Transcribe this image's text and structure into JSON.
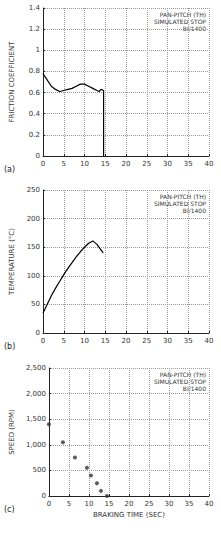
{
  "chart_data": [
    {
      "type": "line",
      "panel_label": "(a)",
      "annotations": [
        "PAN-PITCH (TH)",
        "SIMULATED STOP",
        "BI/1400"
      ],
      "ylabel": "FRICTION COEFFICIENT",
      "x": [
        0,
        0.5,
        1,
        2,
        3,
        4,
        5,
        6,
        7,
        8,
        9,
        10,
        11,
        12,
        13,
        13.5,
        14,
        14.6,
        14.6
      ],
      "values": [
        0.78,
        0.75,
        0.72,
        0.66,
        0.63,
        0.61,
        0.62,
        0.63,
        0.64,
        0.66,
        0.68,
        0.68,
        0.66,
        0.64,
        0.62,
        0.61,
        0.63,
        0.62,
        0
      ],
      "xlim": [
        0,
        40
      ],
      "xticks": [
        0,
        5,
        10,
        15,
        20,
        25,
        30,
        35,
        40
      ],
      "ylim": [
        0,
        1.4
      ],
      "yticks": [
        0,
        0.2,
        0.4,
        0.6,
        0.8,
        1,
        1.2,
        1.4
      ],
      "color": "#000000",
      "grid": true
    },
    {
      "type": "line",
      "panel_label": "(b)",
      "annotations": [
        "PAN-PITCH (TH)",
        "SIMULATED STOP",
        "BI/1400"
      ],
      "ylabel": "TEMPERATURE (°C)",
      "x": [
        0,
        1,
        2,
        3,
        4,
        5,
        6,
        7,
        8,
        9,
        10,
        11,
        12,
        13,
        14,
        14.5
      ],
      "values": [
        35,
        50,
        65,
        78,
        90,
        102,
        113,
        123,
        133,
        142,
        150,
        157,
        161,
        155,
        145,
        140
      ],
      "xlim": [
        0,
        40
      ],
      "xticks": [
        0,
        5,
        10,
        15,
        20,
        25,
        30,
        35,
        40
      ],
      "ylim": [
        0,
        250
      ],
      "yticks": [
        0,
        50,
        100,
        150,
        200,
        250
      ],
      "color": "#000000",
      "grid": true
    },
    {
      "type": "scatter",
      "panel_label": "(c)",
      "annotations": [
        "PAN-PITCH (TH)",
        "SIMULATED STOP",
        "BI/1400"
      ],
      "ylabel": "SPEED (RPM)",
      "x_label": "BRAKING TIME (SEC)",
      "x": [
        0,
        3.5,
        6.5,
        9.5,
        10.5,
        12,
        13,
        14.5
      ],
      "values": [
        1400,
        1050,
        750,
        550,
        400,
        250,
        100,
        0
      ],
      "xlim": [
        0,
        40
      ],
      "xticks": [
        0,
        5,
        10,
        15,
        20,
        25,
        30,
        35,
        40
      ],
      "ylim": [
        0,
        2500
      ],
      "yticks": [
        0,
        500,
        {
          "value": 1000,
          "label": "1,000"
        },
        {
          "value": 1500,
          "label": "1,500"
        },
        {
          "value": 2000,
          "label": "2,000"
        },
        {
          "value": 2500,
          "label": "2,500"
        }
      ],
      "color": "#333333",
      "marker": "circle",
      "grid": true
    }
  ]
}
